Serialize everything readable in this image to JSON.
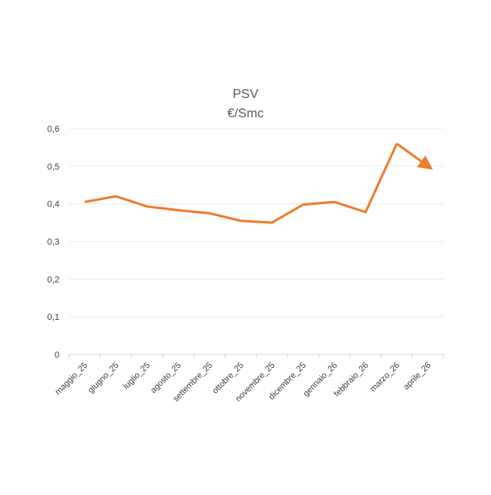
{
  "chart_data": {
    "type": "line",
    "title": "PSV",
    "subtitle": "€/Smc",
    "categories": [
      "maggio_25",
      "giugno_25",
      "luglio_25",
      "agosto_25",
      "settembre_25",
      "ottobre_25",
      "novembre_25",
      "dicembre_25",
      "gennaio_26",
      "febbraio_26",
      "marzo_26",
      "aprile_26"
    ],
    "series": [
      {
        "values": [
          0.405,
          0.42,
          0.393,
          0.383,
          0.375,
          0.355,
          0.35,
          0.398,
          0.405,
          0.378,
          0.56,
          0.5
        ]
      }
    ],
    "ylim": [
      0,
      0.6
    ],
    "yticks": [
      "0",
      "0,1",
      "0,2",
      "0,3",
      "0,4",
      "0,5",
      "0,6"
    ],
    "ytick_values": [
      0,
      0.1,
      0.2,
      0.3,
      0.4,
      0.5,
      0.6
    ],
    "grid": true,
    "legend": "none",
    "line_color": "#ED7D31",
    "last_segment_arrow": true
  }
}
